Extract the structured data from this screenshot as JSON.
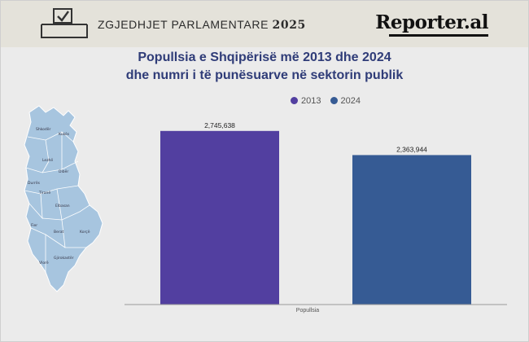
{
  "header": {
    "election_label": "ZGJEDHJET PARLAMENTARE",
    "election_year": "2025",
    "logo": "Reporter.al",
    "ballot_icon": "ballot-box-icon"
  },
  "chart_data": {
    "type": "bar",
    "title_line1": "Popullsia e Shqipërisë më 2013 dhe 2024",
    "title_line2": "dhe numri i të punësuarve në sektorin publik",
    "categories": [
      "Popullsia"
    ],
    "series": [
      {
        "name": "2013",
        "values": [
          2745638
        ],
        "color": "#523fa0"
      },
      {
        "name": "2024",
        "values": [
          2363944
        ],
        "color": "#365b94"
      }
    ],
    "data_labels": [
      "2,745,638",
      "2,363,944"
    ],
    "ylim": [
      0,
      3400000
    ],
    "grid": false,
    "legend_position": "top-center"
  },
  "map": {
    "labels": [
      "Shkodër",
      "Kukës",
      "Lezhë",
      "Dibër",
      "Durrës",
      "Tiranë",
      "Elbasan",
      "Fier",
      "Berat",
      "Korçë",
      "Vlorë",
      "Gjirokastër"
    ],
    "fill": "#a7c5df",
    "stroke": "#ffffff"
  }
}
